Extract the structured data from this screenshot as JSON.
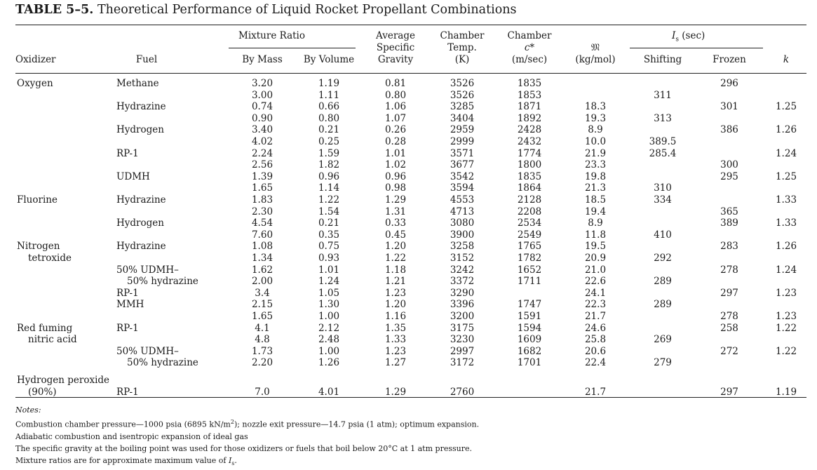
{
  "title": {
    "label": "TABLE 5–5.",
    "text": "Theoretical Performance of Liquid Rocket Propellant Combinations"
  },
  "headers": {
    "mixture_ratio": "Mixture Ratio",
    "isp_group": "I_s (sec)",
    "oxidizer": "Oxidizer",
    "fuel": "Fuel",
    "by_mass": "By Mass",
    "by_volume": "By Volume",
    "avg_sg": [
      "Average",
      "Specific",
      "Gravity"
    ],
    "chamber_temp": [
      "Chamber",
      "Temp.",
      "(K)"
    ],
    "chamber_c": [
      "Chamber",
      "c*",
      "(m/sec)"
    ],
    "molar_mass": [
      "𝔐",
      "(kg/mol)"
    ],
    "shifting": "Shifting",
    "frozen": "Frozen",
    "k": "k"
  },
  "rows": [
    {
      "ox": "Oxygen",
      "fuel": "Methane",
      "mass": "3.20",
      "vol": "1.19",
      "sg": "0.81",
      "temp": "3526",
      "c": "1835",
      "m": "",
      "shift": "",
      "frozen": "296",
      "k": ""
    },
    {
      "ox": "",
      "fuel": "",
      "mass": "3.00",
      "vol": "1.11",
      "sg": "0.80",
      "temp": "3526",
      "c": "1853",
      "m": "",
      "shift": "311",
      "frozen": "",
      "k": ""
    },
    {
      "ox": "",
      "fuel": "Hydrazine",
      "mass": "0.74",
      "vol": "0.66",
      "sg": "1.06",
      "temp": "3285",
      "c": "1871",
      "m": "18.3",
      "shift": "",
      "frozen": "301",
      "k": "1.25"
    },
    {
      "ox": "",
      "fuel": "",
      "mass": "0.90",
      "vol": "0.80",
      "sg": "1.07",
      "temp": "3404",
      "c": "1892",
      "m": "19.3",
      "shift": "313",
      "frozen": "",
      "k": ""
    },
    {
      "ox": "",
      "fuel": "Hydrogen",
      "mass": "3.40",
      "vol": "0.21",
      "sg": "0.26",
      "temp": "2959",
      "c": "2428",
      "m": "8.9",
      "shift": "",
      "frozen": "386",
      "k": "1.26"
    },
    {
      "ox": "",
      "fuel": "",
      "mass": "4.02",
      "vol": "0.25",
      "sg": "0.28",
      "temp": "2999",
      "c": "2432",
      "m": "10.0",
      "shift": "389.5",
      "frozen": "",
      "k": ""
    },
    {
      "ox": "",
      "fuel": "RP-1",
      "mass": "2.24",
      "vol": "1.59",
      "sg": "1.01",
      "temp": "3571",
      "c": "1774",
      "m": "21.9",
      "shift": "285.4",
      "frozen": "",
      "k": "1.24"
    },
    {
      "ox": "",
      "fuel": "",
      "mass": "2.56",
      "vol": "1.82",
      "sg": "1.02",
      "temp": "3677",
      "c": "1800",
      "m": "23.3",
      "shift": "",
      "frozen": "300",
      "k": ""
    },
    {
      "ox": "",
      "fuel": "UDMH",
      "mass": "1.39",
      "vol": "0.96",
      "sg": "0.96",
      "temp": "3542",
      "c": "1835",
      "m": "19.8",
      "shift": "",
      "frozen": "295",
      "k": "1.25"
    },
    {
      "ox": "",
      "fuel": "",
      "mass": "1.65",
      "vol": "1.14",
      "sg": "0.98",
      "temp": "3594",
      "c": "1864",
      "m": "21.3",
      "shift": "310",
      "frozen": "",
      "k": ""
    },
    {
      "ox": "Fluorine",
      "fuel": "Hydrazine",
      "mass": "1.83",
      "vol": "1.22",
      "sg": "1.29",
      "temp": "4553",
      "c": "2128",
      "m": "18.5",
      "shift": "334",
      "frozen": "",
      "k": "1.33"
    },
    {
      "ox": "",
      "fuel": "",
      "mass": "2.30",
      "vol": "1.54",
      "sg": "1.31",
      "temp": "4713",
      "c": "2208",
      "m": "19.4",
      "shift": "",
      "frozen": "365",
      "k": ""
    },
    {
      "ox": "",
      "fuel": "Hydrogen",
      "mass": "4.54",
      "vol": "0.21",
      "sg": "0.33",
      "temp": "3080",
      "c": "2534",
      "m": "8.9",
      "shift": "",
      "frozen": "389",
      "k": "1.33"
    },
    {
      "ox": "",
      "fuel": "",
      "mass": "7.60",
      "vol": "0.35",
      "sg": "0.45",
      "temp": "3900",
      "c": "2549",
      "m": "11.8",
      "shift": "410",
      "frozen": "",
      "k": ""
    },
    {
      "ox": "Nitrogen",
      "fuel": "Hydrazine",
      "mass": "1.08",
      "vol": "0.75",
      "sg": "1.20",
      "temp": "3258",
      "c": "1765",
      "m": "19.5",
      "shift": "",
      "frozen": "283",
      "k": "1.26"
    },
    {
      "ox": "tetroxide",
      "fuel": "",
      "mass": "1.34",
      "vol": "0.93",
      "sg": "1.22",
      "temp": "3152",
      "c": "1782",
      "m": "20.9",
      "shift": "292",
      "frozen": "",
      "k": ""
    },
    {
      "ox": "",
      "fuel": "50% UDMH–",
      "mass": "1.62",
      "vol": "1.01",
      "sg": "1.18",
      "temp": "3242",
      "c": "1652",
      "m": "21.0",
      "shift": "",
      "frozen": "278",
      "k": "1.24"
    },
    {
      "ox": "",
      "fuel": "50% hydrazine",
      "mass": "2.00",
      "vol": "1.24",
      "sg": "1.21",
      "temp": "3372",
      "c": "1711",
      "m": "22.6",
      "shift": "289",
      "frozen": "",
      "k": ""
    },
    {
      "ox": "",
      "fuel": "RP-1",
      "mass": "3.4",
      "vol": "1.05",
      "sg": "1.23",
      "temp": "3290",
      "c": "",
      "m": "24.1",
      "shift": "",
      "frozen": "297",
      "k": "1.23"
    },
    {
      "ox": "",
      "fuel": "MMH",
      "mass": "2.15",
      "vol": "1.30",
      "sg": "1.20",
      "temp": "3396",
      "c": "1747",
      "m": "22.3",
      "shift": "289",
      "frozen": "",
      "k": ""
    },
    {
      "ox": "",
      "fuel": "",
      "mass": "1.65",
      "vol": "1.00",
      "sg": "1.16",
      "temp": "3200",
      "c": "1591",
      "m": "21.7",
      "shift": "",
      "frozen": "278",
      "k": "1.23"
    },
    {
      "ox": "Red fuming",
      "fuel": "RP-1",
      "mass": "4.1",
      "vol": "2.12",
      "sg": "1.35",
      "temp": "3175",
      "c": "1594",
      "m": "24.6",
      "shift": "",
      "frozen": "258",
      "k": "1.22"
    },
    {
      "ox": "nitric acid",
      "fuel": "",
      "mass": "4.8",
      "vol": "2.48",
      "sg": "1.33",
      "temp": "3230",
      "c": "1609",
      "m": "25.8",
      "shift": "269",
      "frozen": "",
      "k": ""
    },
    {
      "ox": "",
      "fuel": "50% UDMH–",
      "mass": "1.73",
      "vol": "1.00",
      "sg": "1.23",
      "temp": "2997",
      "c": "1682",
      "m": "20.6",
      "shift": "",
      "frozen": "272",
      "k": "1.22"
    },
    {
      "ox": "",
      "fuel": "50% hydrazine",
      "mass": "2.20",
      "vol": "1.26",
      "sg": "1.27",
      "temp": "3172",
      "c": "1701",
      "m": "22.4",
      "shift": "279",
      "frozen": "",
      "k": ""
    },
    {
      "ox": "Hydrogen peroxide",
      "fuel": "",
      "mass": "",
      "vol": "",
      "sg": "",
      "temp": "",
      "c": "",
      "m": "",
      "shift": "",
      "frozen": "",
      "k": ""
    },
    {
      "ox": "(90%)",
      "fuel": "RP-1",
      "mass": "7.0",
      "vol": "4.01",
      "sg": "1.29",
      "temp": "2760",
      "c": "",
      "m": "21.7",
      "shift": "",
      "frozen": "297",
      "k": "1.19"
    }
  ],
  "notes": {
    "heading": "Notes:",
    "lines": [
      "Combustion chamber pressure—1000 psia (6895 kN/m²); nozzle exit pressure—14.7 psia (1 atm); optimum expansion.",
      "Adiabatic combustion and isentropic expansion of ideal gas",
      "The specific gravity at the boiling point was used for those oxidizers or fuels that boil below 20°C at 1 atm pressure.",
      "Mixture ratios are for approximate maximum value of I_s."
    ]
  }
}
